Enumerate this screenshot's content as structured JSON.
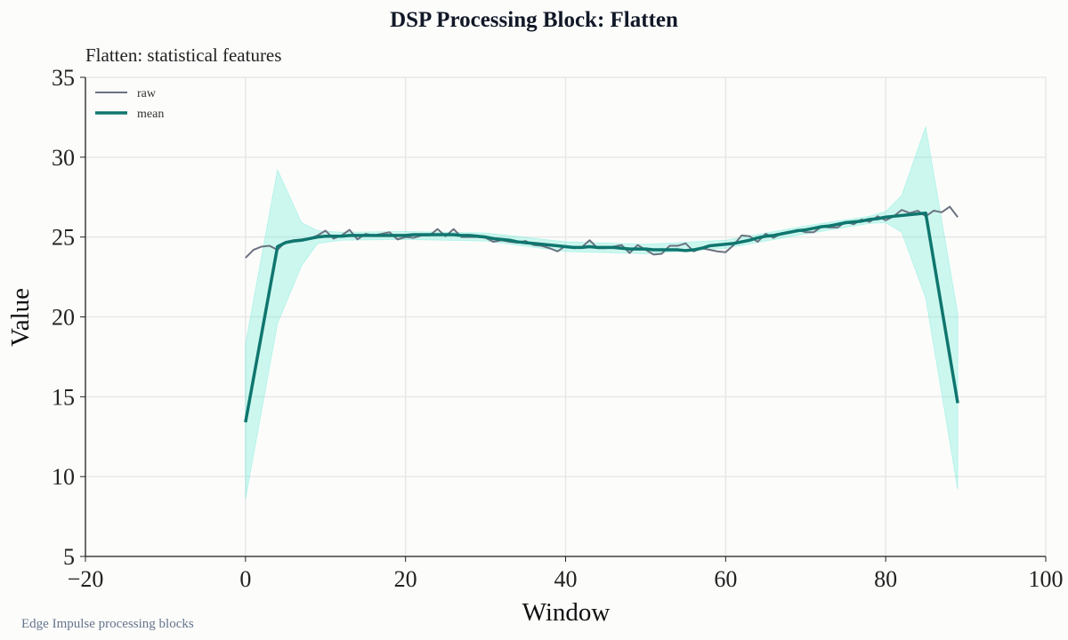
{
  "chart_data": {
    "type": "line",
    "title": "DSP Processing Block: Flatten",
    "subtitle": "Flatten: statistical features",
    "xlabel": "Window",
    "ylabel": "Value",
    "footer": "Edge Impulse processing blocks",
    "xlim": [
      -20,
      100
    ],
    "ylim": [
      5,
      35
    ],
    "xticks": [
      -20,
      0,
      20,
      40,
      60,
      80,
      100
    ],
    "xtick_labels": [
      "−20",
      "0",
      "20",
      "40",
      "60",
      "80",
      "100"
    ],
    "yticks": [
      5,
      10,
      15,
      20,
      25,
      30,
      35
    ],
    "grid": true,
    "legend": {
      "placement": "top-left",
      "entries": [
        "raw",
        "mean"
      ]
    },
    "colors": {
      "raw": "#6b7280",
      "mean": "#0f766e",
      "band": "#5eead4"
    },
    "series": [
      {
        "name": "raw",
        "x": [
          0,
          1,
          2,
          3,
          4,
          5,
          6,
          7,
          8,
          9,
          10,
          11,
          12,
          13,
          14,
          15,
          16,
          17,
          18,
          19,
          20,
          21,
          22,
          23,
          24,
          25,
          26,
          27,
          28,
          29,
          30,
          31,
          32,
          33,
          34,
          35,
          36,
          37,
          38,
          39,
          40,
          41,
          42,
          43,
          44,
          45,
          46,
          47,
          48,
          49,
          50,
          51,
          52,
          53,
          54,
          55,
          56,
          57,
          58,
          59,
          60,
          61,
          62,
          63,
          64,
          65,
          66,
          67,
          68,
          69,
          70,
          71,
          72,
          73,
          74,
          75,
          76,
          77,
          78,
          79,
          80,
          81,
          82,
          83,
          84,
          85,
          86,
          87,
          88,
          89
        ],
        "y": [
          23.7,
          24.2,
          24.4,
          24.45,
          24.2,
          24.7,
          24.8,
          24.85,
          24.9,
          25.1,
          25.4,
          24.9,
          25.1,
          25.45,
          24.85,
          25.2,
          25.1,
          25.2,
          25.3,
          24.85,
          25.0,
          24.95,
          25.1,
          25.1,
          25.5,
          25.05,
          25.5,
          25.0,
          25.0,
          25.0,
          24.95,
          24.7,
          24.8,
          24.7,
          24.65,
          24.75,
          24.5,
          24.45,
          24.3,
          24.1,
          24.45,
          24.3,
          24.35,
          24.8,
          24.3,
          24.3,
          24.4,
          24.5,
          24.0,
          24.5,
          24.2,
          23.9,
          23.95,
          24.45,
          24.45,
          24.6,
          24.1,
          24.3,
          24.2,
          24.1,
          24.05,
          24.5,
          25.1,
          25.05,
          24.7,
          25.2,
          24.95,
          25.25,
          25.3,
          25.45,
          25.3,
          25.3,
          25.65,
          25.6,
          25.6,
          25.95,
          25.8,
          26.1,
          25.95,
          26.3,
          26.05,
          26.3,
          26.7,
          26.5,
          26.65,
          26.3,
          26.65,
          26.55,
          26.9,
          26.25
        ]
      },
      {
        "name": "mean",
        "x": [
          0,
          4,
          5,
          6,
          7,
          8,
          9,
          10,
          11,
          12,
          13,
          14,
          15,
          16,
          17,
          18,
          19,
          20,
          21,
          22,
          23,
          24,
          25,
          26,
          27,
          28,
          29,
          30,
          31,
          32,
          33,
          34,
          35,
          36,
          37,
          38,
          39,
          40,
          41,
          42,
          43,
          44,
          45,
          46,
          47,
          48,
          49,
          50,
          51,
          52,
          53,
          54,
          55,
          56,
          57,
          58,
          59,
          60,
          61,
          62,
          63,
          64,
          65,
          66,
          67,
          68,
          69,
          70,
          71,
          72,
          73,
          74,
          75,
          76,
          77,
          78,
          79,
          80,
          81,
          82,
          83,
          84,
          85,
          89
        ],
        "y": [
          13.4,
          24.4,
          24.65,
          24.75,
          24.8,
          24.9,
          25.0,
          25.05,
          25.05,
          25.05,
          25.1,
          25.1,
          25.1,
          25.1,
          25.1,
          25.1,
          25.1,
          25.1,
          25.15,
          25.15,
          25.15,
          25.15,
          25.15,
          25.15,
          25.1,
          25.1,
          25.05,
          25.0,
          24.9,
          24.85,
          24.8,
          24.7,
          24.65,
          24.6,
          24.55,
          24.5,
          24.45,
          24.4,
          24.35,
          24.35,
          24.4,
          24.35,
          24.35,
          24.35,
          24.3,
          24.25,
          24.25,
          24.25,
          24.2,
          24.2,
          24.2,
          24.2,
          24.15,
          24.2,
          24.3,
          24.45,
          24.5,
          24.55,
          24.6,
          24.7,
          24.8,
          24.95,
          25.05,
          25.1,
          25.2,
          25.3,
          25.4,
          25.45,
          25.55,
          25.65,
          25.7,
          25.8,
          25.9,
          25.95,
          26.0,
          26.1,
          26.15,
          26.25,
          26.3,
          26.35,
          26.4,
          26.45,
          26.5,
          14.6
        ]
      },
      {
        "name": "band",
        "x": [
          0,
          4,
          7,
          9,
          12,
          20,
          30,
          40,
          50,
          60,
          70,
          78,
          80,
          82,
          85,
          89
        ],
        "lower": [
          8.6,
          19.6,
          23.2,
          24.6,
          24.8,
          24.85,
          24.75,
          24.1,
          23.95,
          24.3,
          25.2,
          25.85,
          25.9,
          25.3,
          21.2,
          9.2
        ],
        "upper": [
          18.3,
          29.2,
          25.9,
          25.4,
          25.3,
          25.35,
          25.25,
          24.7,
          24.55,
          24.8,
          25.7,
          26.3,
          26.6,
          27.6,
          31.9,
          20.2
        ]
      }
    ]
  }
}
